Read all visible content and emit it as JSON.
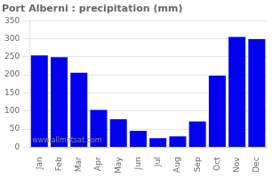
{
  "chart_data": {
    "type": "bar",
    "title": "Port Alberni : precipitation (mm)",
    "categories": [
      "Jan",
      "Feb",
      "Mar",
      "Apr",
      "May",
      "Jun",
      "Jul",
      "Aug",
      "Sep",
      "Oct",
      "Nov",
      "Dec"
    ],
    "values": [
      254,
      249,
      206,
      103,
      77,
      45,
      25,
      30,
      71,
      198,
      305,
      299
    ],
    "color": "#0000ee",
    "ylim": [
      0,
      350
    ],
    "yticks": [
      0,
      50,
      100,
      150,
      200,
      250,
      300,
      350
    ],
    "grid": true,
    "annotations": [
      "www.allmetsat.com"
    ]
  }
}
